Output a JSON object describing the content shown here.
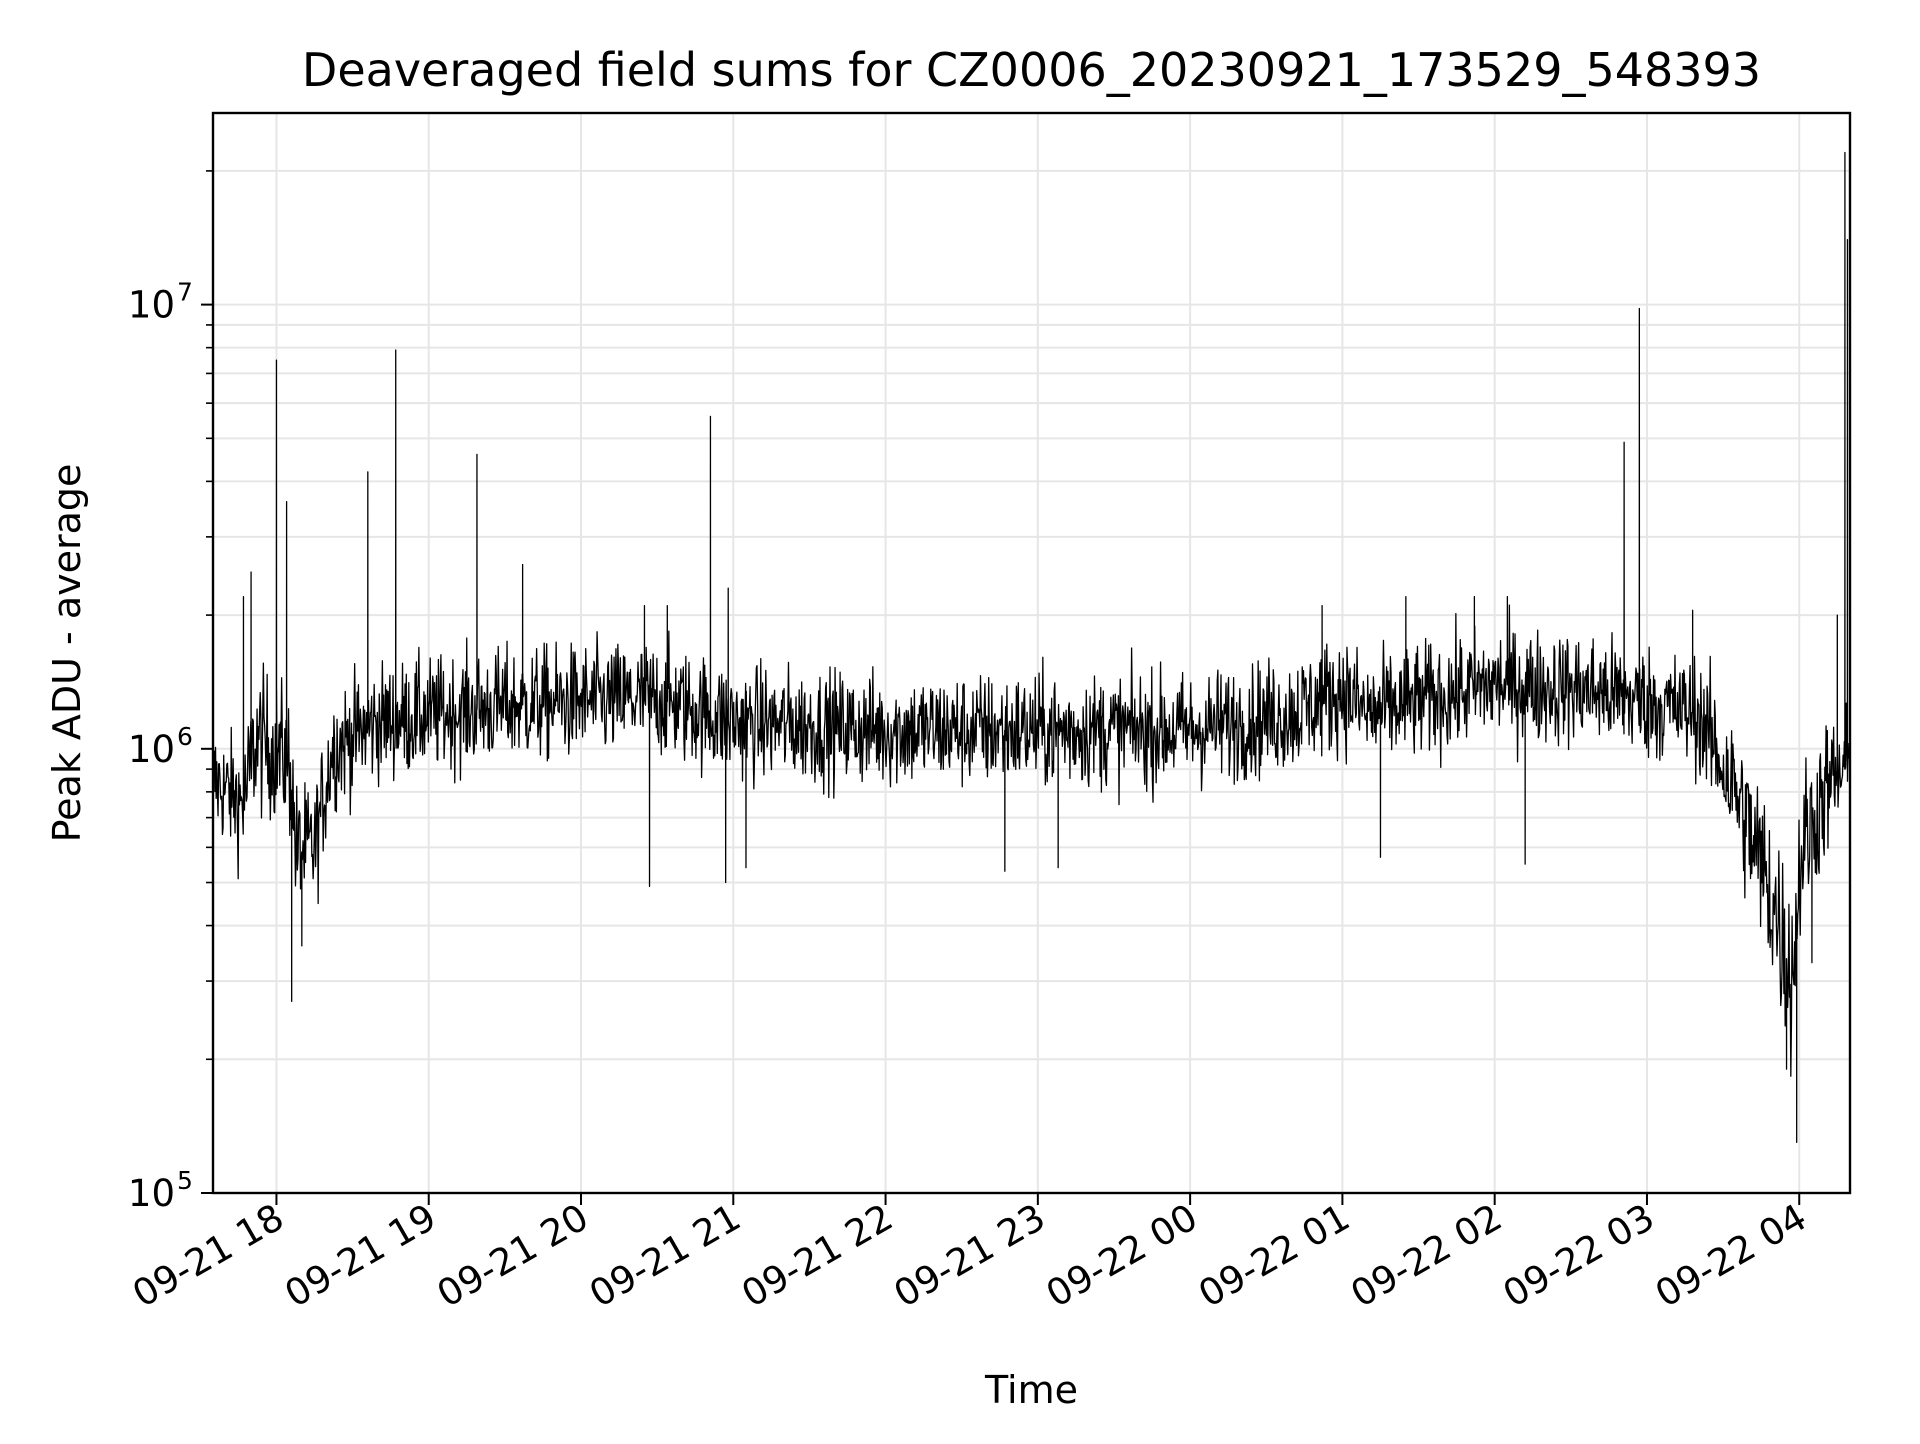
{
  "chart_data": {
    "type": "line",
    "title": "Deaveraged field sums for CZ0006_20230921_173529_548393",
    "xlabel": "Time",
    "ylabel": "Peak ADU - average",
    "yscale": "log",
    "ylim": [
      100000,
      27000000
    ],
    "xlim": [
      "2023-09-21 17:35",
      "2023-09-22 04:20"
    ],
    "grid": true,
    "legend": "none",
    "line_color": "#000000",
    "x_ticks": [
      "09-21 18",
      "09-21 19",
      "09-21 20",
      "09-21 21",
      "09-21 22",
      "09-21 23",
      "09-22 00",
      "09-22 01",
      "09-22 02",
      "09-22 03",
      "09-22 04"
    ],
    "y_ticks": [
      {
        "base": "10",
        "exp": "5",
        "value": 100000
      },
      {
        "base": "10",
        "exp": "6",
        "value": 1000000
      },
      {
        "base": "10",
        "exp": "7",
        "value": 10000000
      }
    ],
    "baseline_segments": [
      {
        "x": "2023-09-21 17:35",
        "y": 850000,
        "spread": 0.28
      },
      {
        "x": "2023-09-21 17:47",
        "y": 750000,
        "spread": 0.3
      },
      {
        "x": "2023-09-21 17:52",
        "y": 1050000,
        "spread": 0.35
      },
      {
        "x": "2023-09-21 18:05",
        "y": 950000,
        "spread": 0.35
      },
      {
        "x": "2023-09-21 18:08",
        "y": 580000,
        "spread": 0.35
      },
      {
        "x": "2023-09-21 18:15",
        "y": 600000,
        "spread": 0.3
      },
      {
        "x": "2023-09-21 18:22",
        "y": 1000000,
        "spread": 0.3
      },
      {
        "x": "2023-09-21 18:40",
        "y": 1150000,
        "spread": 0.28
      },
      {
        "x": "2023-09-21 19:30",
        "y": 1250000,
        "spread": 0.28
      },
      {
        "x": "2023-09-21 20:30",
        "y": 1300000,
        "spread": 0.28
      },
      {
        "x": "2023-09-21 21:00",
        "y": 1150000,
        "spread": 0.28
      },
      {
        "x": "2023-09-21 22:00",
        "y": 1100000,
        "spread": 0.28
      },
      {
        "x": "2023-09-21 23:00",
        "y": 1100000,
        "spread": 0.28
      },
      {
        "x": "2023-09-22 00:00",
        "y": 1100000,
        "spread": 0.28
      },
      {
        "x": "2023-09-22 00:40",
        "y": 1200000,
        "spread": 0.28
      },
      {
        "x": "2023-09-22 01:00",
        "y": 1350000,
        "spread": 0.28
      },
      {
        "x": "2023-09-22 01:10",
        "y": 1200000,
        "spread": 0.28
      },
      {
        "x": "2023-09-22 02:00",
        "y": 1400000,
        "spread": 0.28
      },
      {
        "x": "2023-09-22 02:40",
        "y": 1350000,
        "spread": 0.28
      },
      {
        "x": "2023-09-22 03:20",
        "y": 1200000,
        "spread": 0.28
      },
      {
        "x": "2023-09-22 03:35",
        "y": 800000,
        "spread": 0.35
      },
      {
        "x": "2023-09-22 03:50",
        "y": 450000,
        "spread": 0.45
      },
      {
        "x": "2023-09-22 03:57",
        "y": 300000,
        "spread": 0.45
      },
      {
        "x": "2023-09-22 04:01",
        "y": 600000,
        "spread": 0.4
      },
      {
        "x": "2023-09-22 04:10",
        "y": 800000,
        "spread": 0.35
      },
      {
        "x": "2023-09-22 04:18",
        "y": 900000,
        "spread": 0.3
      }
    ],
    "spikes": [
      {
        "x": "2023-09-21 17:47",
        "y": 2200000
      },
      {
        "x": "2023-09-21 17:50",
        "y": 2500000
      },
      {
        "x": "2023-09-21 18:00",
        "y": 7500000
      },
      {
        "x": "2023-09-21 18:04",
        "y": 3600000
      },
      {
        "x": "2023-09-21 18:06",
        "y": 270000,
        "down": true
      },
      {
        "x": "2023-09-21 18:10",
        "y": 360000,
        "down": true
      },
      {
        "x": "2023-09-21 18:36",
        "y": 4200000
      },
      {
        "x": "2023-09-21 18:47",
        "y": 7900000
      },
      {
        "x": "2023-09-21 19:19",
        "y": 4600000
      },
      {
        "x": "2023-09-21 19:37",
        "y": 2600000
      },
      {
        "x": "2023-09-21 20:25",
        "y": 2100000
      },
      {
        "x": "2023-09-21 20:27",
        "y": 490000,
        "down": true
      },
      {
        "x": "2023-09-21 20:34",
        "y": 2100000
      },
      {
        "x": "2023-09-21 20:51",
        "y": 5600000
      },
      {
        "x": "2023-09-21 20:58",
        "y": 2300000
      },
      {
        "x": "2023-09-21 20:57",
        "y": 500000,
        "down": true
      },
      {
        "x": "2023-09-21 21:05",
        "y": 540000,
        "down": true
      },
      {
        "x": "2023-09-21 22:47",
        "y": 530000,
        "down": true
      },
      {
        "x": "2023-09-21 23:08",
        "y": 540000,
        "down": true
      },
      {
        "x": "2023-09-22 00:52",
        "y": 2100000
      },
      {
        "x": "2023-09-22 01:15",
        "y": 570000,
        "down": true
      },
      {
        "x": "2023-09-22 01:25",
        "y": 2200000
      },
      {
        "x": "2023-09-22 01:52",
        "y": 2200000
      },
      {
        "x": "2023-09-22 02:05",
        "y": 2200000
      },
      {
        "x": "2023-09-22 02:12",
        "y": 550000,
        "down": true
      },
      {
        "x": "2023-09-22 02:51",
        "y": 4900000
      },
      {
        "x": "2023-09-22 02:57",
        "y": 9800000
      },
      {
        "x": "2023-09-22 03:18",
        "y": 2050000
      },
      {
        "x": "2023-09-22 03:55",
        "y": 190000,
        "down": true
      },
      {
        "x": "2023-09-22 03:59",
        "y": 130000,
        "down": true
      },
      {
        "x": "2023-09-22 04:05",
        "y": 330000,
        "down": true
      },
      {
        "x": "2023-09-22 04:15",
        "y": 2000000
      },
      {
        "x": "2023-09-22 04:18",
        "y": 22000000
      },
      {
        "x": "2023-09-22 04:19",
        "y": 14000000
      }
    ]
  }
}
